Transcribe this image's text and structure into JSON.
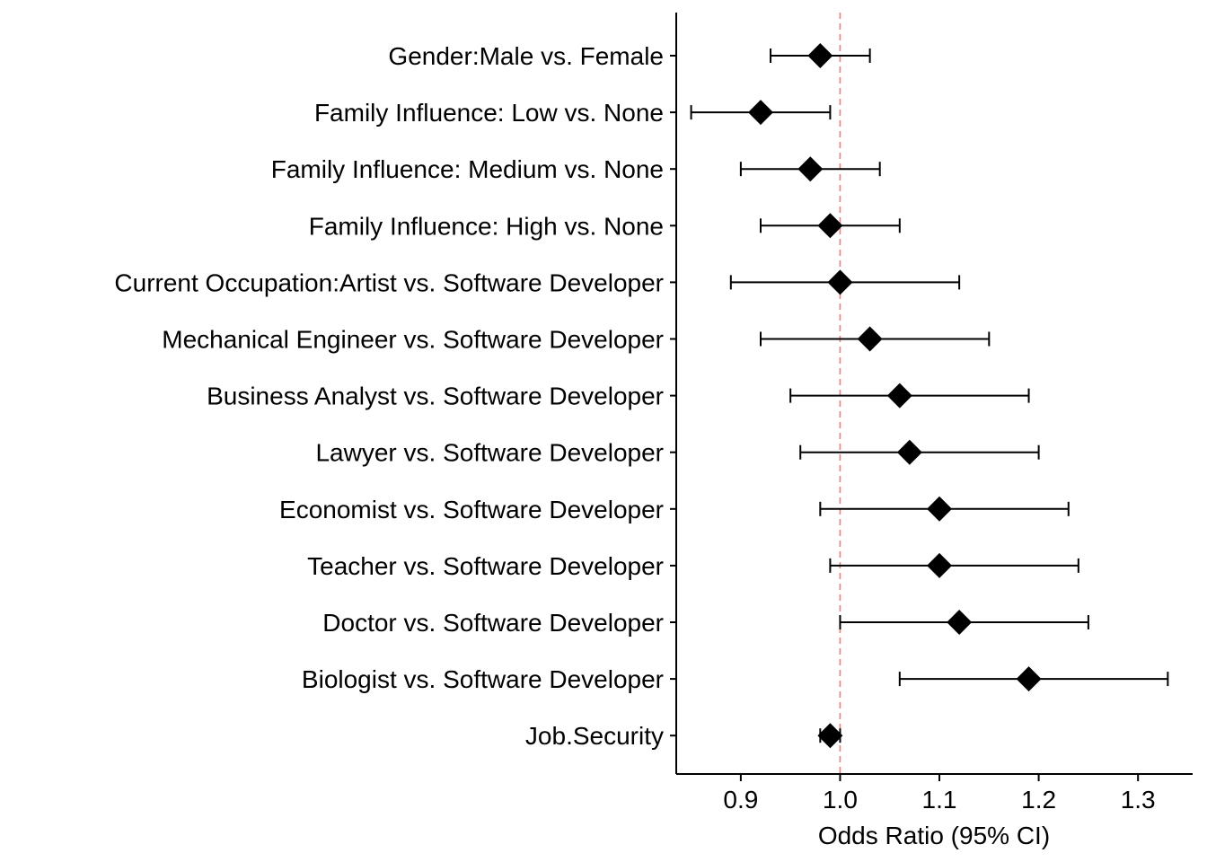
{
  "chart_data": {
    "type": "forest",
    "xlabel": "Odds Ratio (95% CI)",
    "xlim": [
      0.835,
      1.355
    ],
    "xticks": [
      0.9,
      1.0,
      1.1,
      1.2,
      1.3
    ],
    "xtick_labels": [
      "0.9",
      "1.0",
      "1.1",
      "1.2",
      "1.3"
    ],
    "reference_line": 1.0,
    "reference_line_color": "#F08080",
    "marker_color": "#000000",
    "marker": "diamond",
    "grid": false,
    "rows": [
      {
        "label": "Gender:Male vs. Female",
        "or": 0.98,
        "lower": 0.93,
        "upper": 1.03
      },
      {
        "label": "Family Influence: Low vs. None",
        "or": 0.92,
        "lower": 0.85,
        "upper": 0.99
      },
      {
        "label": "Family Influence: Medium vs. None",
        "or": 0.97,
        "lower": 0.9,
        "upper": 1.04
      },
      {
        "label": "Family Influence: High vs. None",
        "or": 0.99,
        "lower": 0.92,
        "upper": 1.06
      },
      {
        "label": "Current Occupation:Artist vs. Software Developer",
        "or": 1.0,
        "lower": 0.89,
        "upper": 1.12
      },
      {
        "label": "Mechanical Engineer vs. Software Developer",
        "or": 1.03,
        "lower": 0.92,
        "upper": 1.15
      },
      {
        "label": "Business Analyst vs. Software Developer",
        "or": 1.06,
        "lower": 0.95,
        "upper": 1.19
      },
      {
        "label": "Lawyer vs. Software Developer",
        "or": 1.07,
        "lower": 0.96,
        "upper": 1.2
      },
      {
        "label": "Economist vs. Software Developer",
        "or": 1.1,
        "lower": 0.98,
        "upper": 1.23
      },
      {
        "label": "Teacher vs. Software Developer",
        "or": 1.1,
        "lower": 0.99,
        "upper": 1.24
      },
      {
        "label": "Doctor vs. Software Developer",
        "or": 1.12,
        "lower": 1.0,
        "upper": 1.25
      },
      {
        "label": "Biologist vs. Software Developer",
        "or": 1.19,
        "lower": 1.06,
        "upper": 1.33
      },
      {
        "label": "Job.Security",
        "or": 0.99,
        "lower": 0.98,
        "upper": 1.0
      }
    ]
  }
}
